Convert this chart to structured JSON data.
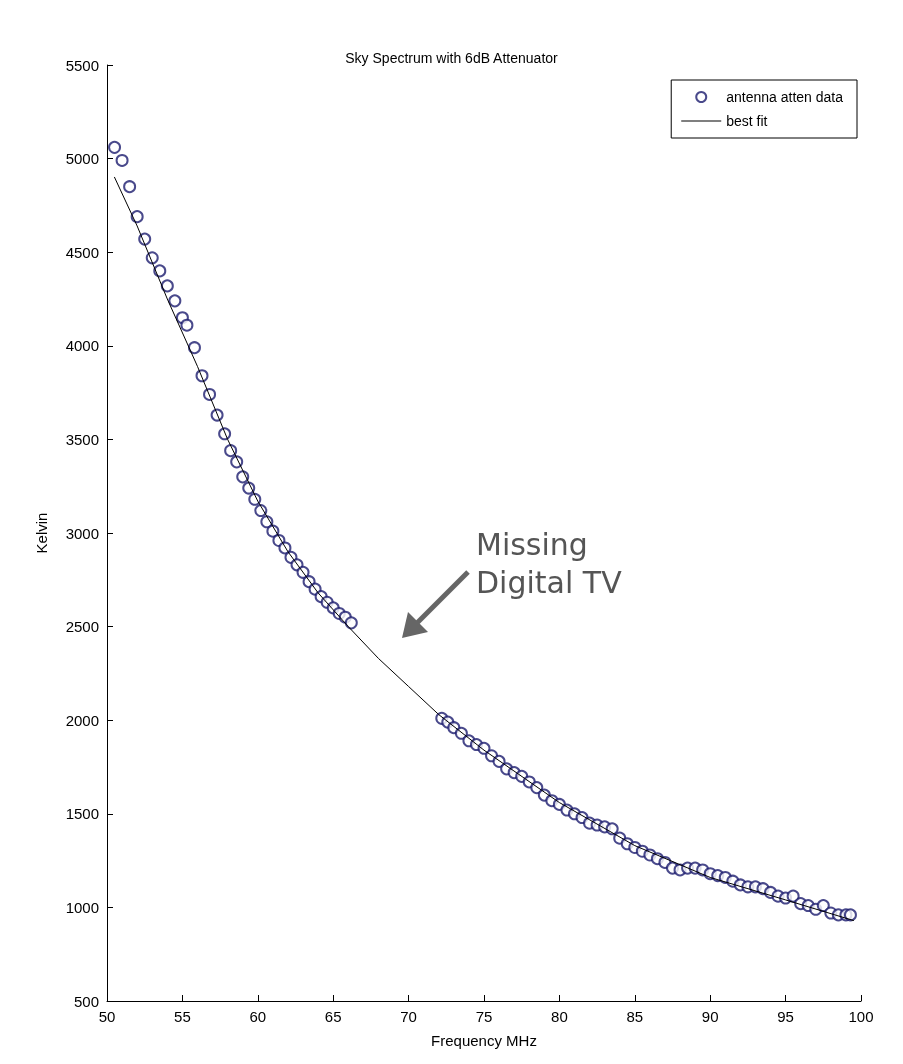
{
  "chart_data": {
    "type": "scatter",
    "title": "Sky Spectrum with 6dB Attenuator",
    "xlabel": "Frequency MHz",
    "ylabel": "Kelvin",
    "xlim": [
      50,
      100
    ],
    "xticks": [
      50,
      55,
      60,
      65,
      70,
      75,
      80,
      85,
      90,
      95,
      100
    ],
    "ylim": [
      500,
      5500
    ],
    "yticks": [
      500,
      1000,
      1500,
      2000,
      2500,
      3000,
      3500,
      4000,
      4500,
      5000,
      5500
    ],
    "grid": false,
    "legend": "top right",
    "marker": "circle",
    "annotations": [
      "Missing\nDigital TV"
    ],
    "series": [
      {
        "name": "antenna atten data",
        "type": "scatter",
        "color": "#1c1c6e",
        "x": [
          50.5,
          51,
          51.5,
          52,
          52.5,
          53,
          53.5,
          54,
          54.5,
          55,
          55.3,
          55.8,
          56.3,
          56.8,
          57.3,
          57.8,
          58.2,
          58.6,
          59,
          59.4,
          59.8,
          60.2,
          60.6,
          61,
          61.4,
          61.8,
          62.2,
          62.6,
          63,
          63.4,
          63.8,
          64.2,
          64.6,
          65,
          65.4,
          65.8,
          66.2,
          72.2,
          72.6,
          73,
          73.5,
          74,
          74.5,
          75,
          75.5,
          76,
          76.5,
          77,
          77.5,
          78,
          78.5,
          79,
          79.5,
          80,
          80.5,
          81,
          81.5,
          82,
          82.5,
          83,
          83.5,
          84,
          84.5,
          85,
          85.5,
          86,
          86.5,
          87,
          87.5,
          88,
          88.5,
          89,
          89.5,
          90,
          90.5,
          91,
          91.5,
          92,
          92.5,
          93,
          93.5,
          94,
          94.5,
          95,
          95.5,
          96,
          96.5,
          97,
          97.5,
          98,
          98.5,
          99,
          99.3
        ],
        "values": [
          5060,
          4990,
          4850,
          4690,
          4570,
          4470,
          4400,
          4320,
          4240,
          4150,
          4110,
          3990,
          3840,
          3740,
          3630,
          3530,
          3440,
          3380,
          3300,
          3240,
          3180,
          3120,
          3060,
          3010,
          2960,
          2920,
          2870,
          2830,
          2790,
          2740,
          2700,
          2660,
          2630,
          2600,
          2570,
          2550,
          2520,
          2010,
          1990,
          1960,
          1930,
          1890,
          1870,
          1850,
          1810,
          1780,
          1740,
          1720,
          1700,
          1670,
          1640,
          1600,
          1570,
          1550,
          1520,
          1500,
          1480,
          1450,
          1440,
          1430,
          1420,
          1370,
          1340,
          1320,
          1300,
          1280,
          1260,
          1240,
          1210,
          1200,
          1210,
          1210,
          1200,
          1180,
          1170,
          1160,
          1140,
          1120,
          1110,
          1110,
          1100,
          1080,
          1060,
          1050,
          1060,
          1020,
          1010,
          990,
          1010,
          970,
          960,
          960,
          960
        ]
      },
      {
        "name": "best fit",
        "type": "line",
        "color": "#000000",
        "line_style": "solid",
        "marker": "none",
        "x": [
          50.5,
          52,
          54,
          56,
          58,
          60,
          62,
          64,
          66,
          68,
          70,
          72,
          75,
          80,
          85,
          90,
          95,
          99.5
        ],
        "values": [
          4900,
          4640,
          4250,
          3890,
          3500,
          3170,
          2900,
          2680,
          2500,
          2330,
          2180,
          2030,
          1840,
          1560,
          1330,
          1160,
          1040,
          930
        ]
      }
    ]
  }
}
